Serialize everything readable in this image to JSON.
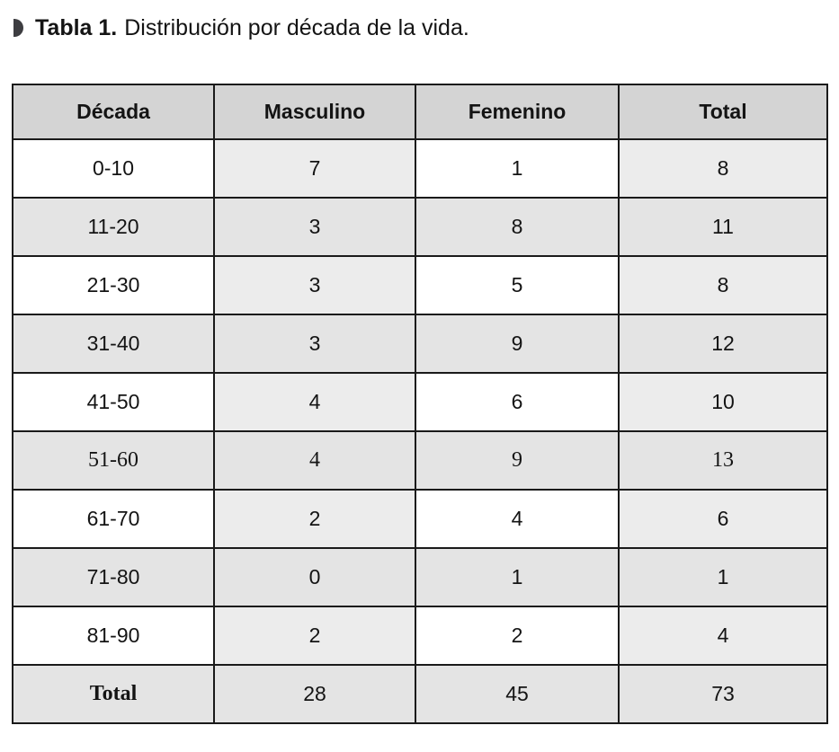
{
  "caption": {
    "label": "Tabla 1.",
    "text": "Distribución por década de la vida."
  },
  "table": {
    "headers": [
      "Década",
      "Masculino",
      "Femenino",
      "Total"
    ],
    "rows": [
      {
        "cells": [
          "0-10",
          "7",
          "1",
          "8"
        ]
      },
      {
        "cells": [
          "11-20",
          "3",
          "8",
          "11"
        ]
      },
      {
        "cells": [
          "21-30",
          "3",
          "5",
          "8"
        ]
      },
      {
        "cells": [
          "31-40",
          "3",
          "9",
          "12"
        ]
      },
      {
        "cells": [
          "41-50",
          "4",
          "6",
          "10"
        ]
      },
      {
        "cells": [
          "51-60",
          "4",
          "9",
          "13"
        ]
      },
      {
        "cells": [
          "61-70",
          "2",
          "4",
          "6"
        ]
      },
      {
        "cells": [
          "71-80",
          "0",
          "1",
          "1"
        ]
      },
      {
        "cells": [
          "81-90",
          "2",
          "2",
          "4"
        ]
      },
      {
        "cells": [
          "Total",
          "28",
          "45",
          "73"
        ]
      }
    ]
  },
  "colors": {
    "header_bg": "#d4d4d4",
    "stripe_bg": "#e4e4e4",
    "checker_bg": "#ececec",
    "border": "#1a1a1a",
    "bullet": "#3d3d41",
    "text": "#141414"
  }
}
